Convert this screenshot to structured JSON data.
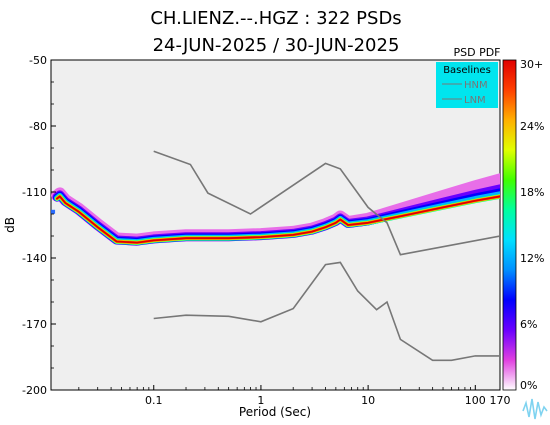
{
  "chart_data": {
    "type": "heatmap",
    "title": "CH.LIENZ.--.HGZ : 322 PSDs",
    "subtitle": "24-JUN-2025 / 30-JUN-2025",
    "xlabel": "Period (Sec)",
    "ylabel": "dB",
    "x_scale": "log",
    "xlim": [
      0.011,
      170
    ],
    "ylim": [
      -200,
      -50
    ],
    "x_ticks": [
      {
        "value": 0.1,
        "label": "0.1"
      },
      {
        "value": 1,
        "label": "1"
      },
      {
        "value": 10,
        "label": "10"
      },
      {
        "value": 100,
        "label": "100"
      },
      {
        "value": 170,
        "label": "170"
      }
    ],
    "y_ticks": [
      {
        "value": -50,
        "label": "-50"
      },
      {
        "value": -80,
        "label": "-80"
      },
      {
        "value": -110,
        "label": "-110"
      },
      {
        "value": -140,
        "label": "-140"
      },
      {
        "value": -170,
        "label": "-170"
      },
      {
        "value": -200,
        "label": "-200"
      }
    ],
    "grid": false,
    "plot_background": "#efefef",
    "colorbar": {
      "label": "PSD PDF",
      "ticks": [
        "30+",
        "24%",
        "18%",
        "12%",
        "6%",
        "0%"
      ],
      "colors": [
        "#ffffff",
        "#e040e0",
        "#6a00ff",
        "#0000ff",
        "#0090ff",
        "#00e0ff",
        "#00ffa0",
        "#40ff00",
        "#e0ff00",
        "#ffb000",
        "#ff4000",
        "#e00000"
      ]
    },
    "legend": {
      "title": "Baselines",
      "entries": [
        "HNM",
        "LNM"
      ],
      "placement": "top-right",
      "background": "#00e5ee"
    },
    "series": [
      {
        "name": "HNM",
        "color": "#777777",
        "points": [
          [
            0.1,
            -91.5
          ],
          [
            0.22,
            -97.5
          ],
          [
            0.32,
            -110.5
          ],
          [
            0.8,
            -120
          ],
          [
            4.0,
            -97
          ],
          [
            5.5,
            -99.5
          ],
          [
            10,
            -117
          ],
          [
            15,
            -124
          ],
          [
            20,
            -138.5
          ],
          [
            170,
            -130
          ]
        ]
      },
      {
        "name": "LNM",
        "color": "#777777",
        "points": [
          [
            0.1,
            -167.5
          ],
          [
            0.2,
            -166
          ],
          [
            0.5,
            -166.5
          ],
          [
            1.0,
            -169
          ],
          [
            2.0,
            -163
          ],
          [
            4.0,
            -143
          ],
          [
            5.5,
            -142
          ],
          [
            8.0,
            -155
          ],
          [
            12,
            -163.5
          ],
          [
            15,
            -160
          ],
          [
            20,
            -177
          ],
          [
            40,
            -186.5
          ],
          [
            60,
            -186.5
          ],
          [
            100,
            -184.5
          ],
          [
            170,
            -184.5
          ]
        ]
      }
    ],
    "pdf_mode": {
      "points": [
        [
          0.0125,
          -113
        ],
        [
          0.0133,
          -112
        ],
        [
          0.015,
          -115
        ],
        [
          0.02,
          -119
        ],
        [
          0.03,
          -126
        ],
        [
          0.045,
          -132.5
        ],
        [
          0.07,
          -133
        ],
        [
          0.1,
          -132
        ],
        [
          0.2,
          -131
        ],
        [
          0.5,
          -131
        ],
        [
          1,
          -130.5
        ],
        [
          2,
          -129.5
        ],
        [
          3,
          -128
        ],
        [
          4,
          -126
        ],
        [
          5,
          -124
        ],
        [
          5.5,
          -122.5
        ],
        [
          6.5,
          -125
        ],
        [
          10,
          -124
        ],
        [
          20,
          -121
        ],
        [
          50,
          -117
        ],
        [
          100,
          -114
        ],
        [
          170,
          -112
        ]
      ]
    },
    "outlier_points": [
      [
        0.0115,
        -119
      ],
      [
        0.0105,
        -132.5
      ],
      [
        0.0105,
        -141
      ]
    ]
  }
}
